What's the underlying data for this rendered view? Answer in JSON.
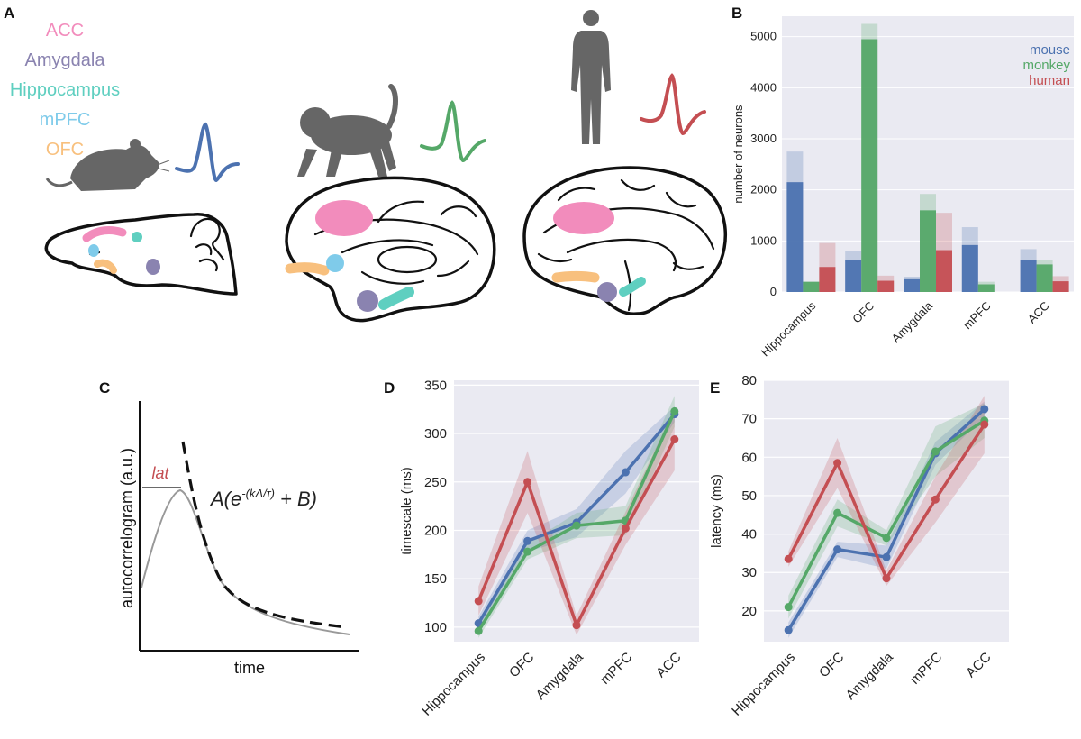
{
  "panels": {
    "a": "A",
    "b": "B",
    "c": "C",
    "d": "D",
    "e": "E"
  },
  "colors": {
    "ACC": "#f28cbc",
    "Amygdala": "#8a83b0",
    "Hippocampus": "#5fcfc0",
    "mPFC": "#7fcbea",
    "OFC": "#f8c07e",
    "mouse": "#4c72b0",
    "monkey": "#55a868",
    "human": "#c44e52",
    "animal": "#666666",
    "grid": "#e6e6f0",
    "panel_bg": "#eaeaf2"
  },
  "region_legend": [
    "ACC",
    "Amygdala",
    "Hippocampus",
    "mPFC",
    "OFC"
  ],
  "schematic_c": {
    "ylabel": "autocorrelogram (a.u.)",
    "xlabel": "time",
    "lat_label": "lat",
    "formula_pre": "A(e",
    "formula_exp": "-(kΔ/τ)",
    "formula_post": " + B)"
  },
  "chart_data": [
    {
      "id": "B",
      "type": "bar",
      "title": "",
      "categories": [
        "Hippocampus",
        "OFC",
        "Amygdala",
        "mPFC",
        "ACC"
      ],
      "ylabel": "number of neurons",
      "xlabel": "",
      "ylim": [
        0,
        5400
      ],
      "yticks": [
        0,
        1000,
        2000,
        3000,
        4000,
        5000
      ],
      "legend": [
        "mouse",
        "monkey",
        "human"
      ],
      "legend_position": "top-right",
      "series": [
        {
          "name": "mouse",
          "values": [
            2150,
            620,
            250,
            920,
            620
          ],
          "total_values": [
            2750,
            800,
            300,
            1270,
            840
          ]
        },
        {
          "name": "monkey",
          "values": [
            200,
            4950,
            1600,
            150,
            540
          ],
          "total_values": [
            200,
            5250,
            1920,
            200,
            620
          ]
        },
        {
          "name": "human",
          "values": [
            490,
            220,
            820,
            0,
            210
          ],
          "total_values": [
            960,
            320,
            1550,
            0,
            310
          ]
        }
      ]
    },
    {
      "id": "D",
      "type": "line",
      "categories": [
        "Hippocampus",
        "OFC",
        "Amygdala",
        "mPFC",
        "ACC"
      ],
      "ylabel": "timescale (ms)",
      "xlabel": "",
      "ylim": [
        85,
        355
      ],
      "yticks": [
        100,
        150,
        200,
        250,
        300,
        350
      ],
      "series": [
        {
          "name": "mouse",
          "values": [
            104,
            189,
            208,
            260,
            320
          ],
          "ci_low": [
            97,
            178,
            193,
            238,
            312
          ],
          "ci_high": [
            111,
            200,
            222,
            282,
            328
          ]
        },
        {
          "name": "monkey",
          "values": [
            96,
            178,
            205,
            210,
            323
          ],
          "ci_low": [
            89,
            170,
            192,
            195,
            307
          ],
          "ci_high": [
            103,
            186,
            218,
            225,
            339
          ]
        },
        {
          "name": "human",
          "values": [
            127,
            250,
            102,
            202,
            294
          ],
          "ci_low": [
            112,
            218,
            92,
            185,
            262
          ],
          "ci_high": [
            142,
            282,
            112,
            219,
            326
          ]
        }
      ]
    },
    {
      "id": "E",
      "type": "line",
      "categories": [
        "Hippocampus",
        "OFC",
        "Amygdala",
        "mPFC",
        "ACC"
      ],
      "ylabel": "latency (ms)",
      "xlabel": "",
      "ylim": [
        12,
        80
      ],
      "yticks": [
        20,
        30,
        40,
        50,
        60,
        70,
        80
      ],
      "series": [
        {
          "name": "mouse",
          "values": [
            15,
            36,
            34,
            61,
            72.5
          ],
          "ci_low": [
            13,
            34,
            31,
            58,
            70.5
          ],
          "ci_high": [
            17,
            38,
            37,
            64,
            74.5
          ]
        },
        {
          "name": "monkey",
          "values": [
            21,
            45.5,
            39,
            61.5,
            69.5
          ],
          "ci_low": [
            18,
            42,
            37,
            55,
            65
          ],
          "ci_high": [
            24,
            49,
            41,
            68,
            74
          ]
        },
        {
          "name": "human",
          "values": [
            33.5,
            58.5,
            28.5,
            49,
            68.5
          ],
          "ci_low": [
            31.5,
            52,
            26.5,
            43,
            61
          ],
          "ci_high": [
            35.5,
            65,
            30.5,
            55,
            76
          ]
        }
      ]
    }
  ]
}
